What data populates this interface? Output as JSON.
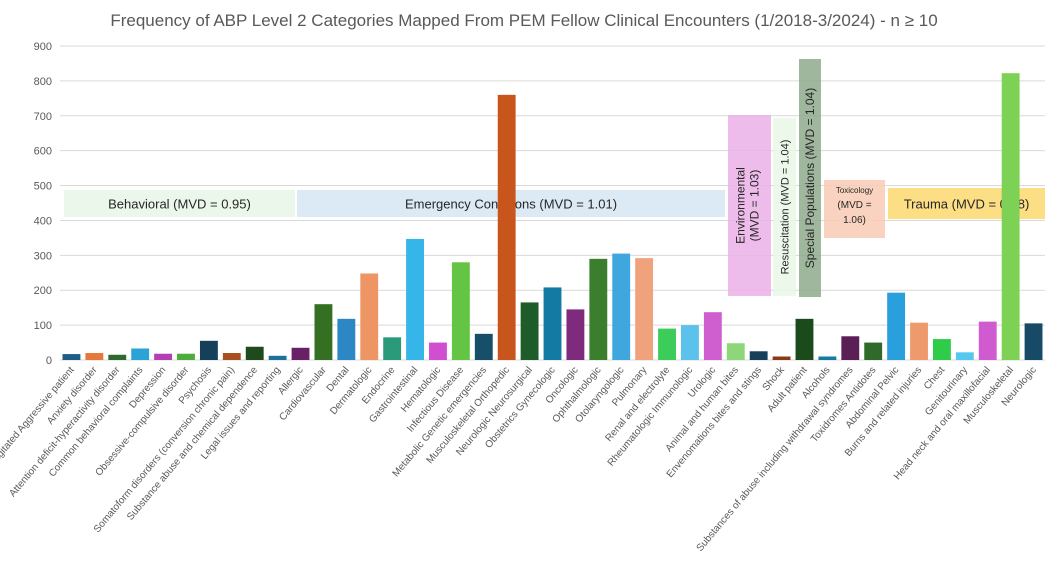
{
  "chart_data": {
    "type": "bar",
    "title": "Frequency of ABP Level 2 Categories Mapped From PEM Fellow Clinical Encounters (1/2018-3/2024) - n ≥ 10",
    "ylim": [
      0,
      900
    ],
    "yticks": [
      0,
      100,
      200,
      300,
      400,
      500,
      600,
      700,
      800,
      900
    ],
    "grid": true,
    "categories": [
      "Agitated Aggressive patient",
      "Anxiety disorder",
      "Attention deficit-hyperactivity disorder",
      "Common behavioral complaints",
      "Depression",
      "Obsessive-compulsive disorder",
      "Psychosis",
      "Somatoform disorders (conversion chronic pain)",
      "Substance abuse and chemical dependence",
      "Legal issues and reporting",
      "Allergic",
      "Cardiovascular",
      "Dental",
      "Dermatologic",
      "Endocrine",
      "Gastrointestinal",
      "Hematologic",
      "Infectious Disease",
      "Metabolic Genetic emergencies",
      "Musculoskeletal Orthopedic",
      "Neurologic Neurosurgical",
      "Obstetrics Gynecologic",
      "Oncologic",
      "Ophthalmologic",
      "Otolaryngologic",
      "Pulmonary",
      "Renal and electrolyte",
      "Rheumatologic Immunologic",
      "Urologic",
      "Animal and human bites",
      "Envenomations bites and stings",
      "Shock",
      "Adult patient",
      "Alcohols",
      "Substances of abuse including withdrawal syndromes",
      "Toxidromes Antidotes",
      "Abdominal Pelvic",
      "Burns and related injuries",
      "Chest",
      "Genitourinary",
      "Head neck and oral maxillofacial",
      "Musculoskeletal",
      "Neurologic"
    ],
    "values": [
      17,
      20,
      15,
      33,
      18,
      18,
      55,
      20,
      38,
      12,
      35,
      160,
      118,
      248,
      65,
      347,
      50,
      280,
      75,
      760,
      165,
      208,
      145,
      290,
      305,
      292,
      90,
      100,
      137,
      48,
      25,
      10,
      118,
      10,
      68,
      50,
      193,
      107,
      60,
      22,
      110,
      822,
      105
    ],
    "colors": [
      "#1f5c86",
      "#e8783a",
      "#2d6a2d",
      "#2ba3d6",
      "#b43fb2",
      "#4dac3c",
      "#163f5a",
      "#a84e1f",
      "#1e4a1e",
      "#1f6f9c",
      "#6a2067",
      "#356f22",
      "#2c87c4",
      "#ee9564",
      "#2a9a7a",
      "#35b5e8",
      "#d04ed0",
      "#63c543",
      "#174f6b",
      "#c7551c",
      "#1e5c2a",
      "#127aa3",
      "#7e2a7d",
      "#3b7f2e",
      "#3fa7de",
      "#f0a27c",
      "#3ccc5a",
      "#5cc2ec",
      "#cf5ecf",
      "#8ed67a",
      "#163f5a",
      "#8a3a14",
      "#1b4a1b",
      "#127aa3",
      "#5a1f55",
      "#2f6a2b",
      "#2a9fdd",
      "#ef9a6c",
      "#2fcc4a",
      "#55c8f0",
      "#d05ad0",
      "#7dd154",
      "#164a66"
    ],
    "groups": [
      {
        "label": "Behavioral (MVD = 0.95)",
        "fill": "#e6f6e6"
      },
      {
        "label": "Emergency Conditions (MVD = 1.01)",
        "fill": "#d6e6f5"
      },
      {
        "label": "Environmental (MVD = 1.03)",
        "fill": "#eab0e6"
      },
      {
        "label": "Resuscitation (MVD = 1.04)",
        "fill": "#e9f7e6"
      },
      {
        "label": "Special Populations (MVD = 1.04)",
        "fill": "#8eaa8c"
      },
      {
        "label_lines": [
          "Toxicology",
          "(MVD =",
          "1.06)"
        ],
        "fill": "#f8cbb4"
      },
      {
        "label": "Trauma (MVD = 0.88)",
        "fill": "#fbd870"
      }
    ]
  }
}
